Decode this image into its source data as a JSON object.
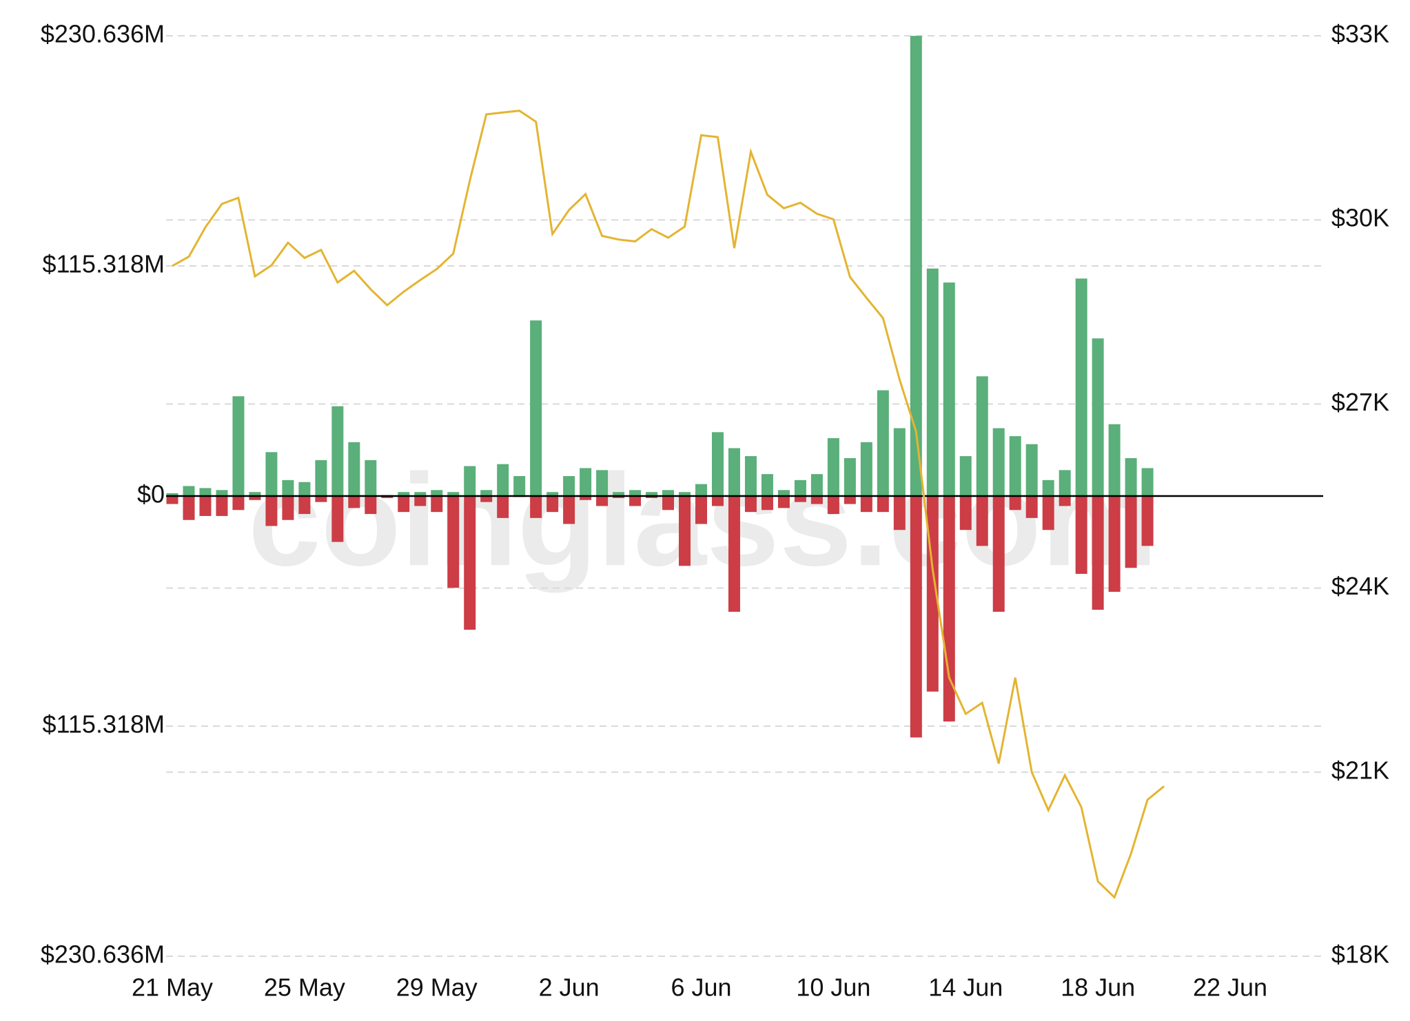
{
  "chart_data": {
    "type": "bar_line",
    "watermark": "coinglass.com",
    "categories": [
      "21 May",
      null,
      null,
      null,
      null,
      null,
      null,
      null,
      "25 May",
      null,
      null,
      null,
      null,
      null,
      null,
      null,
      "29 May",
      null,
      null,
      null,
      null,
      null,
      null,
      null,
      "2 Jun",
      null,
      null,
      null,
      null,
      null,
      null,
      null,
      "6 Jun",
      null,
      null,
      null,
      null,
      null,
      null,
      null,
      "10 Jun",
      null,
      null,
      null,
      null,
      null,
      null,
      null,
      "14 Jun",
      null,
      null,
      null,
      null,
      null,
      null,
      null,
      "18 Jun",
      null,
      null,
      null,
      null,
      null,
      null,
      null,
      "22 Jun"
    ],
    "series": [
      {
        "type": "bar",
        "color": "#5aaf7a",
        "values": [
          1.4,
          5,
          4,
          3,
          50,
          2,
          22,
          8,
          7,
          18,
          45,
          27,
          18,
          0.5,
          2,
          2,
          3,
          2,
          15,
          3,
          16,
          10,
          88,
          2,
          10,
          14,
          13,
          2,
          3,
          2,
          3,
          2,
          6,
          32,
          24,
          20,
          11,
          3,
          8,
          11,
          29,
          19,
          27,
          53,
          34,
          230.6,
          114,
          107,
          20,
          60,
          34,
          30,
          26,
          8,
          13,
          109,
          79,
          36,
          19,
          14,
          null,
          null,
          null,
          null,
          null
        ]
      },
      {
        "type": "bar",
        "color": "#cc3d46",
        "values": [
          -4,
          -12,
          -10,
          -10,
          -7,
          -2,
          -15,
          -12,
          -9,
          -3,
          -23,
          -6,
          -9,
          -1,
          -8,
          -5,
          -8,
          -46,
          -67,
          -3,
          -11,
          -0.5,
          -11,
          -8,
          -14,
          -2,
          -5,
          -1,
          -5,
          -1,
          -7,
          -35,
          -14,
          -5,
          -58,
          -8,
          -7,
          -6,
          -3,
          -4,
          -9,
          -4,
          -8,
          -8,
          -17,
          -121,
          -98,
          -113,
          -17,
          -25,
          -58,
          -7,
          -11,
          -17,
          -5,
          -39,
          -57,
          -48,
          -36,
          -25,
          null,
          null,
          null,
          null,
          null
        ]
      },
      {
        "type": "line",
        "axis": "y2",
        "color": "#e4b431",
        "values": [
          29250,
          29400,
          29880,
          30260,
          30360,
          29080,
          29260,
          29630,
          29380,
          29510,
          28980,
          29170,
          28870,
          28610,
          28830,
          29020,
          29200,
          29450,
          30640,
          31720,
          31750,
          31780,
          31600,
          29770,
          30160,
          30420,
          29740,
          29680,
          29650,
          29850,
          29710,
          29890,
          31380,
          31350,
          29540,
          31110,
          30410,
          30190,
          30280,
          30100,
          30010,
          29070,
          28730,
          28400,
          27400,
          26550,
          24310,
          22540,
          21950,
          22130,
          21140,
          22540,
          21000,
          20380,
          20950,
          20430,
          19220,
          18960,
          19670,
          20550,
          20770,
          null,
          null,
          null,
          null
        ]
      }
    ],
    "ylim": [
      -230.636,
      230.636
    ],
    "yticks": [
      {
        "value": 230.636,
        "label": "$230.636M"
      },
      {
        "value": 115.318,
        "label": "$115.318M"
      },
      {
        "value": 0,
        "label": "$0"
      },
      {
        "value": -115.318,
        "label": "$115.318M"
      },
      {
        "value": -230.636,
        "label": "$230.636M"
      }
    ],
    "y2lim": [
      18000,
      33000
    ],
    "y2ticks": [
      {
        "value": 33000,
        "label": "$33K"
      },
      {
        "value": 30000,
        "label": "$30K"
      },
      {
        "value": 27000,
        "label": "$27K"
      },
      {
        "value": 24000,
        "label": "$24K"
      },
      {
        "value": 21000,
        "label": "$21K"
      },
      {
        "value": 18000,
        "label": "$18K"
      }
    ],
    "grid": true
  }
}
